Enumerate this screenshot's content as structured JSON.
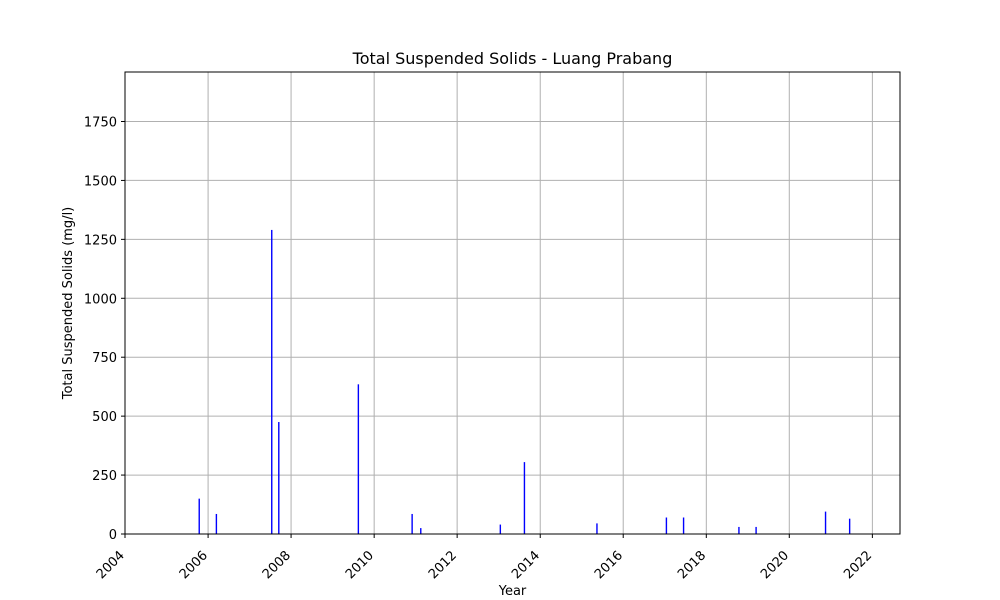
{
  "chart_data": {
    "type": "bar",
    "title": "Total Suspended Solids - Luang Prabang",
    "xlabel": "Year",
    "ylabel": "Total Suspended Solids (mg/l)",
    "xlim": [
      "2004-01-01",
      "2022-09-01"
    ],
    "ylim": [
      0,
      1960
    ],
    "x_ticks": [
      "2004",
      "2006",
      "2008",
      "2010",
      "2012",
      "2014",
      "2016",
      "2018",
      "2020",
      "2022"
    ],
    "y_ticks": [
      0,
      250,
      500,
      750,
      1000,
      1250,
      1500,
      1750
    ],
    "grid": true,
    "bar_color": "#0000ff",
    "series": [
      {
        "x": [
          "2005-10-15",
          "2006-03-15",
          "2007-07-15",
          "2007-09-15",
          "2009-08-15",
          "2010-12-01",
          "2011-02-15",
          "2013-01-15",
          "2013-08-15",
          "2015-05-15",
          "2017-01-15",
          "2017-06-15",
          "2018-10-15",
          "2019-03-15",
          "2020-11-15",
          "2021-06-15"
        ],
        "values": [
          150,
          85,
          1290,
          475,
          635,
          85,
          25,
          40,
          305,
          45,
          70,
          70,
          30,
          30,
          95,
          65
        ]
      }
    ]
  }
}
